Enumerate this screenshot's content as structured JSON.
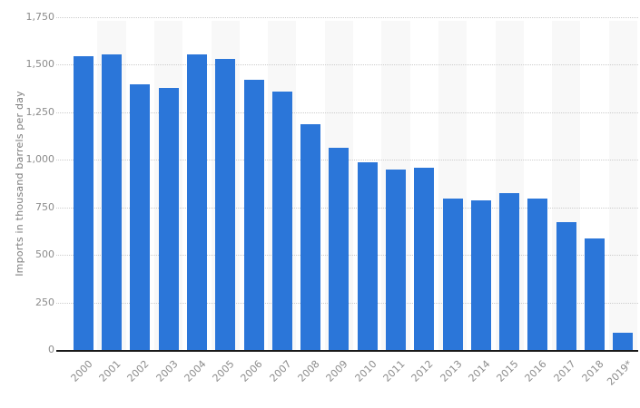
{
  "chart_data": {
    "type": "bar",
    "title": "",
    "xlabel": "",
    "ylabel": "Imports in thousand barrels per day",
    "categories": [
      "2000",
      "2001",
      "2002",
      "2003",
      "2004",
      "2005",
      "2006",
      "2007",
      "2008",
      "2009",
      "2010",
      "2011",
      "2012",
      "2013",
      "2014",
      "2015",
      "2016",
      "2017",
      "2018",
      "2019*"
    ],
    "values": [
      1546,
      1553,
      1398,
      1376,
      1554,
      1529,
      1419,
      1361,
      1189,
      1063,
      988,
      951,
      960,
      797,
      789,
      826,
      796,
      673,
      586,
      92
    ],
    "ylim": [
      0,
      1750
    ],
    "yticks": [
      0,
      250,
      500,
      750,
      1000,
      1250,
      1500,
      1750
    ],
    "ytick_labels": [
      "0",
      "250",
      "500",
      "750",
      "1,000",
      "1,250",
      "1,500",
      "1,750"
    ],
    "grid": "horizontal-dotted",
    "legend": "none",
    "plot_background": "alternating-column-stripes"
  },
  "colors": {
    "bar": "#2b76d9",
    "column_stripe": "#f8f8f8",
    "gridline": "#cccccc",
    "axis_line": "#1a1a1a",
    "tick_label": "#8c8c8c",
    "axis_title": "#7c7c7c",
    "background": "#ffffff"
  }
}
